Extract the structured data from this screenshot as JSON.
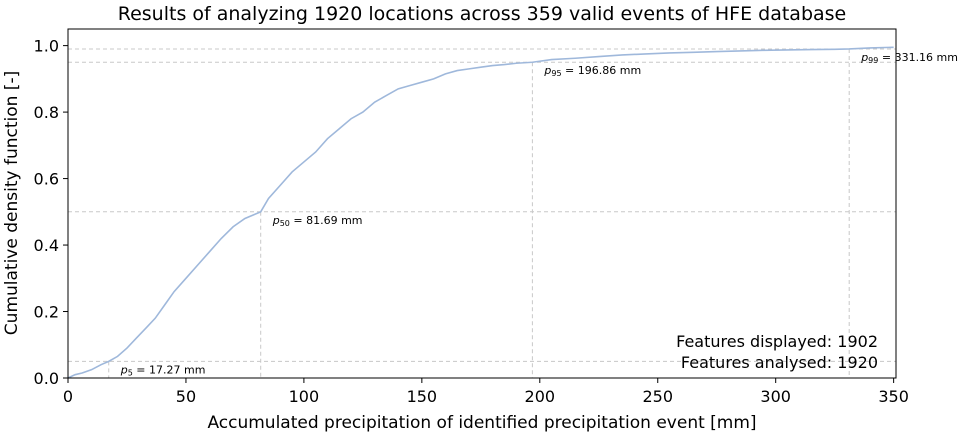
{
  "chart_data": {
    "type": "line",
    "title": "Results of analyzing 1920 locations across 359 valid events of HFE database",
    "xlabel": "Accumulated precipitation of identified precipitation event [mm]",
    "ylabel": "Cumulative density function [-]",
    "xlim": [
      0,
      351
    ],
    "ylim": [
      0,
      1.05
    ],
    "xticks": [
      0,
      50,
      100,
      150,
      200,
      250,
      300,
      350
    ],
    "xtick_labels": [
      "0",
      "50",
      "100",
      "150",
      "200",
      "250",
      "300",
      "350"
    ],
    "yticks": [
      0.0,
      0.2,
      0.4,
      0.6,
      0.8,
      1.0
    ],
    "ytick_labels": [
      "0.0",
      "0.2",
      "0.4",
      "0.6",
      "0.8",
      "1.0"
    ],
    "grid": false,
    "line_color": "#9fb8db",
    "guide_color": "#c8c8c8",
    "series": [
      {
        "x": [
          0,
          3,
          6,
          10,
          14,
          17.27,
          21,
          25,
          29,
          33,
          37,
          41,
          45,
          50,
          55,
          60,
          65,
          70,
          75,
          81.69,
          85,
          90,
          95,
          100,
          105,
          110,
          115,
          120,
          125,
          130,
          135,
          140,
          145,
          150,
          155,
          160,
          165,
          170,
          175,
          180,
          185,
          190,
          196.86,
          205,
          215,
          225,
          235,
          245,
          255,
          265,
          275,
          285,
          295,
          305,
          315,
          325,
          331.16,
          340,
          350
        ],
        "y": [
          0.0,
          0.01,
          0.015,
          0.025,
          0.04,
          0.05,
          0.065,
          0.09,
          0.12,
          0.15,
          0.18,
          0.22,
          0.26,
          0.3,
          0.34,
          0.38,
          0.42,
          0.455,
          0.48,
          0.5,
          0.54,
          0.58,
          0.62,
          0.65,
          0.68,
          0.72,
          0.75,
          0.78,
          0.8,
          0.83,
          0.85,
          0.87,
          0.88,
          0.89,
          0.9,
          0.915,
          0.925,
          0.93,
          0.935,
          0.94,
          0.943,
          0.947,
          0.95,
          0.958,
          0.962,
          0.967,
          0.972,
          0.975,
          0.978,
          0.98,
          0.982,
          0.984,
          0.986,
          0.987,
          0.988,
          0.989,
          0.99,
          0.993,
          0.995
        ]
      }
    ],
    "percentiles": [
      {
        "sym": "p",
        "sub": "5",
        "text": " = 17.27 mm",
        "x": 17.27,
        "y": 0.05
      },
      {
        "sym": "p",
        "sub": "50",
        "text": " = 81.69 mm",
        "x": 81.69,
        "y": 0.5
      },
      {
        "sym": "p",
        "sub": "95",
        "text": " = 196.86 mm",
        "x": 196.86,
        "y": 0.95
      },
      {
        "sym": "p",
        "sub": "99",
        "text": " = 331.16 mm",
        "x": 331.16,
        "y": 0.99
      }
    ],
    "info": {
      "displayed": "Features displayed: 1902",
      "analysed": "Features analysed: 1920"
    }
  }
}
